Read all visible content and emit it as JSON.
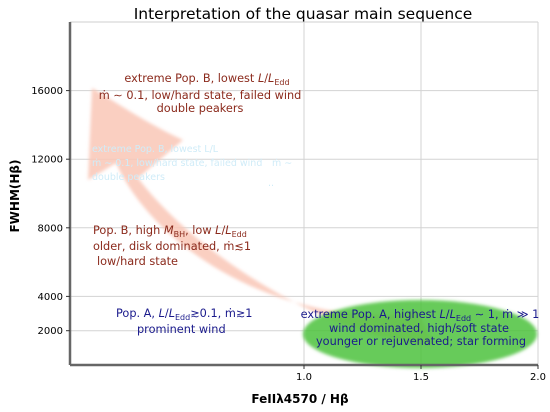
{
  "chart_data": {
    "type": "scatter",
    "title": "Interpretation of the quasar main sequence",
    "xlabel": "FeIIλ4570 / Hβ",
    "ylabel": "FWHM(Hβ)",
    "xlim": [
      0.0,
      2.0
    ],
    "ylim": [
      0,
      20000
    ],
    "x_ticks": [
      1.0,
      1.5,
      2.0
    ],
    "x_tick_labels": [
      "1.0",
      "1.5",
      "2.0"
    ],
    "y_ticks": [
      2000,
      4000,
      8000,
      12000,
      16000
    ],
    "y_tick_labels": [
      "2000",
      "4000",
      "8000",
      "12000",
      "16000"
    ],
    "grid": true,
    "colors": {
      "pop_b_text": "#8b2a1c",
      "pop_a_text": "#1a1a8c",
      "arrow_fill": "#f9c7b6",
      "ellipse_fill": "#4cc23c"
    },
    "annotations": [
      {
        "name": "extreme-pop-b",
        "lines": [
          "extreme Pop. B,  lowest L/LEdd",
          "ṁ ∼ 0.1, low/hard state, failed wind",
          "double peakers"
        ]
      },
      {
        "name": "pop-b",
        "lines": [
          "Pop. B, high MBH, low L/LEdd",
          "older, disk dominated, ṁ≲1",
          "low/hard state"
        ]
      },
      {
        "name": "pop-a",
        "lines": [
          "Pop. A, L/LEdd≳0.1, ṁ≳1",
          "prominent wind"
        ]
      },
      {
        "name": "extreme-pop-a",
        "lines": [
          "extreme Pop. A, highest L/LEdd ∼ 1, ṁ ≫ 1",
          "wind dominated, high/soft state",
          "younger or rejuvenated; star forming"
        ]
      }
    ]
  }
}
